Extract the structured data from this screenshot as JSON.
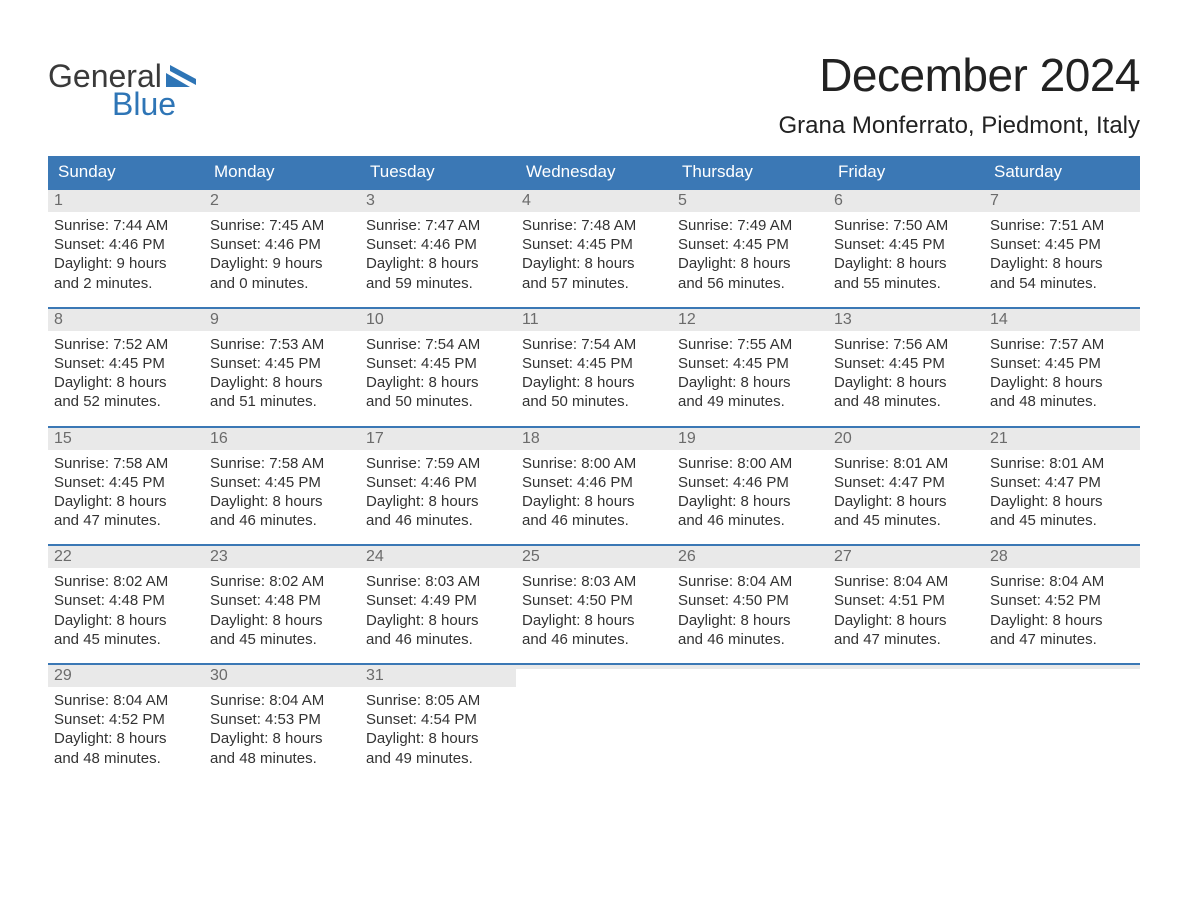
{
  "brand": {
    "line1": "General",
    "line2": "Blue",
    "color_primary": "#2e75b6",
    "color_text": "#3a3a3a"
  },
  "title": "December 2024",
  "location": "Grana Monferrato, Piedmont, Italy",
  "colors": {
    "header_bg": "#3b78b5",
    "header_text": "#ffffff",
    "daynum_bg": "#e9e9e9",
    "daynum_text": "#6b6b6b",
    "body_text": "#333333",
    "rule": "#3b78b5",
    "page_bg": "#ffffff"
  },
  "days_of_week": [
    "Sunday",
    "Monday",
    "Tuesday",
    "Wednesday",
    "Thursday",
    "Friday",
    "Saturday"
  ],
  "layout": {
    "week_count": 5,
    "columns": 7,
    "first_day_column": 0
  },
  "weeks": [
    [
      {
        "n": "1",
        "sunrise": "Sunrise: 7:44 AM",
        "sunset": "Sunset: 4:46 PM",
        "d1": "Daylight: 9 hours",
        "d2": "and 2 minutes."
      },
      {
        "n": "2",
        "sunrise": "Sunrise: 7:45 AM",
        "sunset": "Sunset: 4:46 PM",
        "d1": "Daylight: 9 hours",
        "d2": "and 0 minutes."
      },
      {
        "n": "3",
        "sunrise": "Sunrise: 7:47 AM",
        "sunset": "Sunset: 4:46 PM",
        "d1": "Daylight: 8 hours",
        "d2": "and 59 minutes."
      },
      {
        "n": "4",
        "sunrise": "Sunrise: 7:48 AM",
        "sunset": "Sunset: 4:45 PM",
        "d1": "Daylight: 8 hours",
        "d2": "and 57 minutes."
      },
      {
        "n": "5",
        "sunrise": "Sunrise: 7:49 AM",
        "sunset": "Sunset: 4:45 PM",
        "d1": "Daylight: 8 hours",
        "d2": "and 56 minutes."
      },
      {
        "n": "6",
        "sunrise": "Sunrise: 7:50 AM",
        "sunset": "Sunset: 4:45 PM",
        "d1": "Daylight: 8 hours",
        "d2": "and 55 minutes."
      },
      {
        "n": "7",
        "sunrise": "Sunrise: 7:51 AM",
        "sunset": "Sunset: 4:45 PM",
        "d1": "Daylight: 8 hours",
        "d2": "and 54 minutes."
      }
    ],
    [
      {
        "n": "8",
        "sunrise": "Sunrise: 7:52 AM",
        "sunset": "Sunset: 4:45 PM",
        "d1": "Daylight: 8 hours",
        "d2": "and 52 minutes."
      },
      {
        "n": "9",
        "sunrise": "Sunrise: 7:53 AM",
        "sunset": "Sunset: 4:45 PM",
        "d1": "Daylight: 8 hours",
        "d2": "and 51 minutes."
      },
      {
        "n": "10",
        "sunrise": "Sunrise: 7:54 AM",
        "sunset": "Sunset: 4:45 PM",
        "d1": "Daylight: 8 hours",
        "d2": "and 50 minutes."
      },
      {
        "n": "11",
        "sunrise": "Sunrise: 7:54 AM",
        "sunset": "Sunset: 4:45 PM",
        "d1": "Daylight: 8 hours",
        "d2": "and 50 minutes."
      },
      {
        "n": "12",
        "sunrise": "Sunrise: 7:55 AM",
        "sunset": "Sunset: 4:45 PM",
        "d1": "Daylight: 8 hours",
        "d2": "and 49 minutes."
      },
      {
        "n": "13",
        "sunrise": "Sunrise: 7:56 AM",
        "sunset": "Sunset: 4:45 PM",
        "d1": "Daylight: 8 hours",
        "d2": "and 48 minutes."
      },
      {
        "n": "14",
        "sunrise": "Sunrise: 7:57 AM",
        "sunset": "Sunset: 4:45 PM",
        "d1": "Daylight: 8 hours",
        "d2": "and 48 minutes."
      }
    ],
    [
      {
        "n": "15",
        "sunrise": "Sunrise: 7:58 AM",
        "sunset": "Sunset: 4:45 PM",
        "d1": "Daylight: 8 hours",
        "d2": "and 47 minutes."
      },
      {
        "n": "16",
        "sunrise": "Sunrise: 7:58 AM",
        "sunset": "Sunset: 4:45 PM",
        "d1": "Daylight: 8 hours",
        "d2": "and 46 minutes."
      },
      {
        "n": "17",
        "sunrise": "Sunrise: 7:59 AM",
        "sunset": "Sunset: 4:46 PM",
        "d1": "Daylight: 8 hours",
        "d2": "and 46 minutes."
      },
      {
        "n": "18",
        "sunrise": "Sunrise: 8:00 AM",
        "sunset": "Sunset: 4:46 PM",
        "d1": "Daylight: 8 hours",
        "d2": "and 46 minutes."
      },
      {
        "n": "19",
        "sunrise": "Sunrise: 8:00 AM",
        "sunset": "Sunset: 4:46 PM",
        "d1": "Daylight: 8 hours",
        "d2": "and 46 minutes."
      },
      {
        "n": "20",
        "sunrise": "Sunrise: 8:01 AM",
        "sunset": "Sunset: 4:47 PM",
        "d1": "Daylight: 8 hours",
        "d2": "and 45 minutes."
      },
      {
        "n": "21",
        "sunrise": "Sunrise: 8:01 AM",
        "sunset": "Sunset: 4:47 PM",
        "d1": "Daylight: 8 hours",
        "d2": "and 45 minutes."
      }
    ],
    [
      {
        "n": "22",
        "sunrise": "Sunrise: 8:02 AM",
        "sunset": "Sunset: 4:48 PM",
        "d1": "Daylight: 8 hours",
        "d2": "and 45 minutes."
      },
      {
        "n": "23",
        "sunrise": "Sunrise: 8:02 AM",
        "sunset": "Sunset: 4:48 PM",
        "d1": "Daylight: 8 hours",
        "d2": "and 45 minutes."
      },
      {
        "n": "24",
        "sunrise": "Sunrise: 8:03 AM",
        "sunset": "Sunset: 4:49 PM",
        "d1": "Daylight: 8 hours",
        "d2": "and 46 minutes."
      },
      {
        "n": "25",
        "sunrise": "Sunrise: 8:03 AM",
        "sunset": "Sunset: 4:50 PM",
        "d1": "Daylight: 8 hours",
        "d2": "and 46 minutes."
      },
      {
        "n": "26",
        "sunrise": "Sunrise: 8:04 AM",
        "sunset": "Sunset: 4:50 PM",
        "d1": "Daylight: 8 hours",
        "d2": "and 46 minutes."
      },
      {
        "n": "27",
        "sunrise": "Sunrise: 8:04 AM",
        "sunset": "Sunset: 4:51 PM",
        "d1": "Daylight: 8 hours",
        "d2": "and 47 minutes."
      },
      {
        "n": "28",
        "sunrise": "Sunrise: 8:04 AM",
        "sunset": "Sunset: 4:52 PM",
        "d1": "Daylight: 8 hours",
        "d2": "and 47 minutes."
      }
    ],
    [
      {
        "n": "29",
        "sunrise": "Sunrise: 8:04 AM",
        "sunset": "Sunset: 4:52 PM",
        "d1": "Daylight: 8 hours",
        "d2": "and 48 minutes."
      },
      {
        "n": "30",
        "sunrise": "Sunrise: 8:04 AM",
        "sunset": "Sunset: 4:53 PM",
        "d1": "Daylight: 8 hours",
        "d2": "and 48 minutes."
      },
      {
        "n": "31",
        "sunrise": "Sunrise: 8:05 AM",
        "sunset": "Sunset: 4:54 PM",
        "d1": "Daylight: 8 hours",
        "d2": "and 49 minutes."
      },
      {
        "empty": true,
        "n": "",
        "sunrise": "",
        "sunset": "",
        "d1": "",
        "d2": ""
      },
      {
        "empty": true,
        "n": "",
        "sunrise": "",
        "sunset": "",
        "d1": "",
        "d2": ""
      },
      {
        "empty": true,
        "n": "",
        "sunrise": "",
        "sunset": "",
        "d1": "",
        "d2": ""
      },
      {
        "empty": true,
        "n": "",
        "sunrise": "",
        "sunset": "",
        "d1": "",
        "d2": ""
      }
    ]
  ]
}
